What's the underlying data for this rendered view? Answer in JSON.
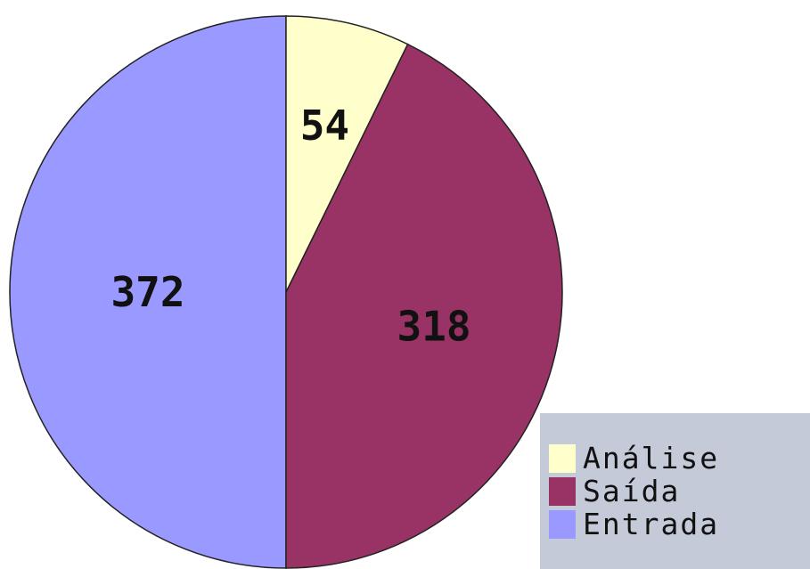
{
  "chart_data": {
    "type": "pie",
    "start_angle_deg": 0,
    "direction": "counterclockwise",
    "slices": [
      {
        "name": "Entrada",
        "value": 372,
        "color": "#9999ff"
      },
      {
        "name": "Saída",
        "value": 318,
        "color": "#993366"
      },
      {
        "name": "Análise",
        "value": 54,
        "color": "#ffffcc"
      }
    ],
    "legend": {
      "position": "bottom-right",
      "items": [
        {
          "label": "Análise",
          "color": "#ffffcc"
        },
        {
          "label": "Saída",
          "color": "#993366"
        },
        {
          "label": "Entrada",
          "color": "#9999ff"
        }
      ]
    }
  }
}
